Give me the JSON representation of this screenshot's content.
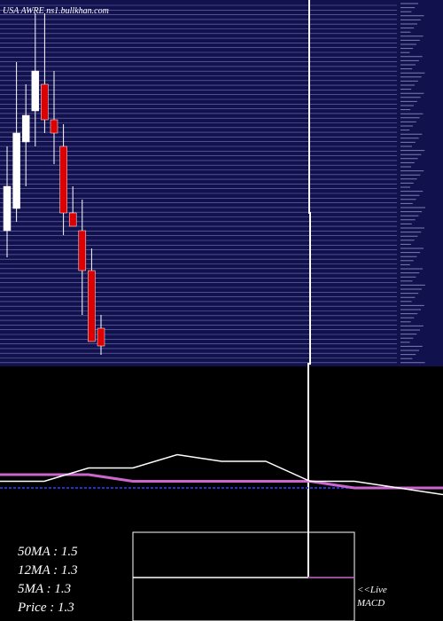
{
  "header": {
    "ticker_label": "USA AWRE ns1.bullkhan.com"
  },
  "colors": {
    "background": "#000000",
    "price_panel": "#11114d",
    "grid_line": "#8888cc",
    "candle_up": "#ffffff",
    "candle_down": "#dd0000",
    "ma_fast": "#ffffff",
    "ma_slow": "#cc66cc",
    "ma_long": "#2233cc",
    "macd_box": "#ffffff",
    "macd_signal": "#cc66cc"
  },
  "stats": {
    "ma50": "50MA : 1.5",
    "ma12": "12MA : 1.3",
    "ma5": "5MA : 1.3",
    "price": "Price   : 1.3"
  },
  "macd": {
    "link_label": "<<Live",
    "title": "MACD"
  },
  "chart_data": {
    "type": "candlestick",
    "grid": true,
    "candles": [
      {
        "open": 1.53,
        "high": 1.72,
        "low": 1.47,
        "close": 1.63,
        "dir": "up"
      },
      {
        "open": 1.58,
        "high": 1.91,
        "low": 1.55,
        "close": 1.75,
        "dir": "up"
      },
      {
        "open": 1.73,
        "high": 1.86,
        "low": 1.63,
        "close": 1.79,
        "dir": "up"
      },
      {
        "open": 1.8,
        "high": 2.02,
        "low": 1.72,
        "close": 1.89,
        "dir": "up"
      },
      {
        "open": 1.86,
        "high": 2.02,
        "low": 1.75,
        "close": 1.78,
        "dir": "down"
      },
      {
        "open": 1.78,
        "high": 1.89,
        "low": 1.68,
        "close": 1.75,
        "dir": "down"
      },
      {
        "open": 1.72,
        "high": 1.77,
        "low": 1.52,
        "close": 1.57,
        "dir": "down"
      },
      {
        "open": 1.57,
        "high": 1.63,
        "low": 1.54,
        "close": 1.54,
        "dir": "down"
      },
      {
        "open": 1.53,
        "high": 1.6,
        "low": 1.34,
        "close": 1.44,
        "dir": "down"
      },
      {
        "open": 1.44,
        "high": 1.49,
        "low": 1.28,
        "close": 1.28,
        "dir": "down"
      },
      {
        "open": 1.31,
        "high": 1.34,
        "low": 1.25,
        "close": 1.27,
        "dir": "down"
      }
    ],
    "ma_fast": [
      1.33,
      1.33,
      1.35,
      1.35,
      1.37,
      1.36,
      1.36,
      1.33,
      1.33,
      1.32,
      1.31
    ],
    "ma_slow": [
      1.34,
      1.34,
      1.34,
      1.33,
      1.33,
      1.33,
      1.33,
      1.33,
      1.32,
      1.32,
      1.32
    ],
    "ma_long": [
      1.32,
      1.32,
      1.32,
      1.32,
      1.32,
      1.32,
      1.32,
      1.32,
      1.32,
      1.32,
      1.32
    ]
  }
}
